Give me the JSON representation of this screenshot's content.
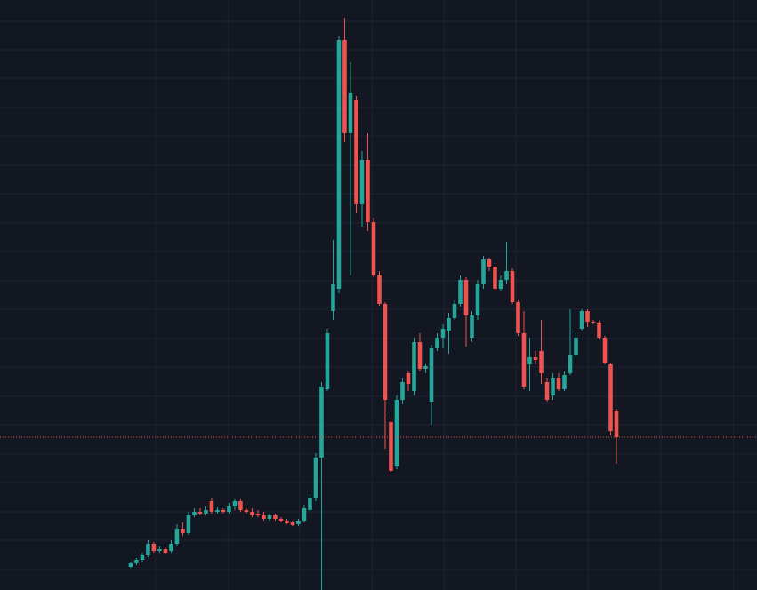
{
  "chart_data": {
    "type": "candlestick",
    "x": [
      0,
      1,
      2,
      3,
      4,
      5,
      6,
      7,
      8,
      9,
      10,
      11,
      12,
      13,
      14,
      15,
      16,
      17,
      18,
      19,
      20,
      21,
      22,
      23,
      24,
      25,
      26,
      27,
      28,
      29,
      30,
      31,
      32,
      33,
      34,
      35,
      36,
      37,
      38,
      39,
      40,
      41,
      42,
      43,
      44,
      45,
      46,
      47,
      48,
      49,
      50,
      51,
      52,
      53,
      54,
      55,
      56,
      57,
      58,
      59,
      60,
      61,
      62,
      63,
      64,
      65,
      66,
      67,
      68,
      69,
      70,
      71,
      72,
      73,
      74,
      75,
      76,
      77,
      78,
      79,
      80,
      81,
      82,
      83,
      84
    ],
    "open": [
      26,
      30,
      34,
      39,
      52,
      44,
      46,
      44,
      52,
      69,
      64,
      84,
      88,
      86,
      100,
      88,
      90,
      88,
      94,
      100,
      90,
      88,
      86,
      84,
      80,
      84,
      80,
      78,
      76,
      74,
      78,
      90,
      104,
      149,
      226,
      314,
      339,
      619,
      514,
      552,
      434,
      484,
      414,
      354,
      322,
      189,
      139,
      214,
      244,
      224,
      279,
      249,
      212,
      272,
      284,
      292,
      306,
      322,
      349,
      284,
      309,
      344,
      372,
      364,
      339,
      349,
      359,
      324,
      289,
      254,
      262,
      269,
      234,
      219,
      239,
      226,
      244,
      264,
      294,
      314,
      302,
      301,
      284,
      254,
      202
    ],
    "high": [
      32,
      36,
      42,
      56,
      54,
      49,
      48,
      56,
      74,
      76,
      88,
      92,
      92,
      94,
      104,
      93,
      92,
      98,
      102,
      102,
      92,
      92,
      90,
      88,
      86,
      86,
      82,
      80,
      78,
      80,
      96,
      108,
      154,
      234,
      294,
      394,
      624,
      644,
      594,
      556,
      494,
      514,
      419,
      359,
      324,
      194,
      219,
      239,
      246,
      284,
      289,
      254,
      276,
      289,
      299,
      312,
      326,
      354,
      352,
      314,
      349,
      376,
      374,
      366,
      354,
      392,
      362,
      326,
      314,
      284,
      269,
      304,
      239,
      244,
      244,
      246,
      316,
      289,
      316,
      316,
      304,
      303,
      286,
      256,
      204
    ],
    "low": [
      25,
      28,
      32,
      37,
      42,
      42,
      40,
      42,
      50,
      61,
      62,
      82,
      84,
      84,
      86,
      86,
      86,
      86,
      90,
      88,
      86,
      82,
      82,
      78,
      78,
      78,
      76,
      74,
      72,
      72,
      76,
      88,
      100,
      0,
      224,
      304,
      334,
      504,
      354,
      424,
      409,
      404,
      352,
      320,
      159,
      132,
      136,
      209,
      224,
      219,
      246,
      244,
      186,
      269,
      272,
      266,
      304,
      319,
      274,
      279,
      304,
      339,
      359,
      336,
      336,
      344,
      322,
      286,
      226,
      224,
      254,
      232,
      212,
      214,
      224,
      224,
      242,
      262,
      292,
      296,
      299,
      282,
      254,
      174,
      142
    ],
    "close": [
      30,
      34,
      39,
      52,
      44,
      46,
      42,
      52,
      69,
      64,
      84,
      88,
      86,
      90,
      88,
      90,
      88,
      94,
      100,
      90,
      88,
      84,
      84,
      80,
      84,
      80,
      78,
      75,
      73,
      78,
      92,
      104,
      149,
      229,
      289,
      344,
      619,
      514,
      559,
      434,
      484,
      414,
      354,
      322,
      214,
      134,
      214,
      234,
      232,
      279,
      249,
      252,
      272,
      284,
      294,
      306,
      322,
      349,
      309,
      309,
      344,
      372,
      364,
      339,
      349,
      359,
      324,
      289,
      229,
      262,
      259,
      244,
      214,
      239,
      226,
      242,
      264,
      284,
      314,
      302,
      301,
      284,
      256,
      179,
      172
    ],
    "up_color": "#26a69a",
    "down_color": "#ef5350",
    "last_price": 172,
    "last_price_color": "#ef5350",
    "xlim": [
      -22.6,
      108.3
    ],
    "xticks": [
      4.3,
      16.8,
      29.2,
      41.7,
      54.2,
      66.6,
      79.1,
      91.7,
      104.2
    ],
    "ylim": [
      0,
      664
    ],
    "yticks": [
      640,
      608,
      576,
      543,
      511,
      478,
      446,
      413,
      381,
      348,
      316,
      283,
      251,
      218,
      186,
      153,
      121,
      88,
      56,
      23
    ],
    "grid": true
  }
}
